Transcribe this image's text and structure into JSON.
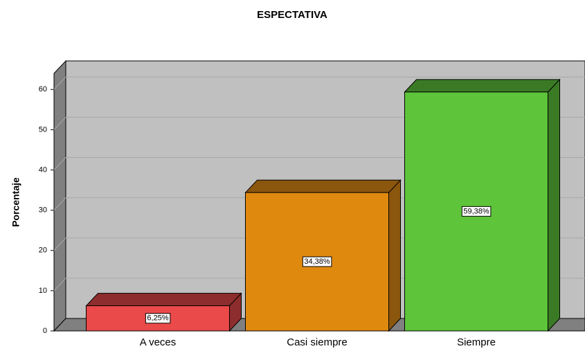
{
  "chart_data": {
    "type": "bar3d",
    "title": "ESPECTATIVA",
    "y_label": "Porcentaje",
    "categories": [
      "A veces",
      "Casi siempre",
      "Siempre"
    ],
    "values": [
      6.25,
      34.38,
      59.38
    ],
    "value_labels": [
      "6,25%",
      "34,38%",
      "59,38%"
    ],
    "colors": [
      "#ea4a4a",
      "#e0890f",
      "#5ec43a"
    ],
    "side_colors": [
      "#8e2d2d",
      "#8b560e",
      "#3b7a25"
    ],
    "ylim": [
      0,
      64
    ],
    "yticks": [
      0,
      10,
      20,
      30,
      40,
      50,
      60
    ],
    "grid": true
  }
}
